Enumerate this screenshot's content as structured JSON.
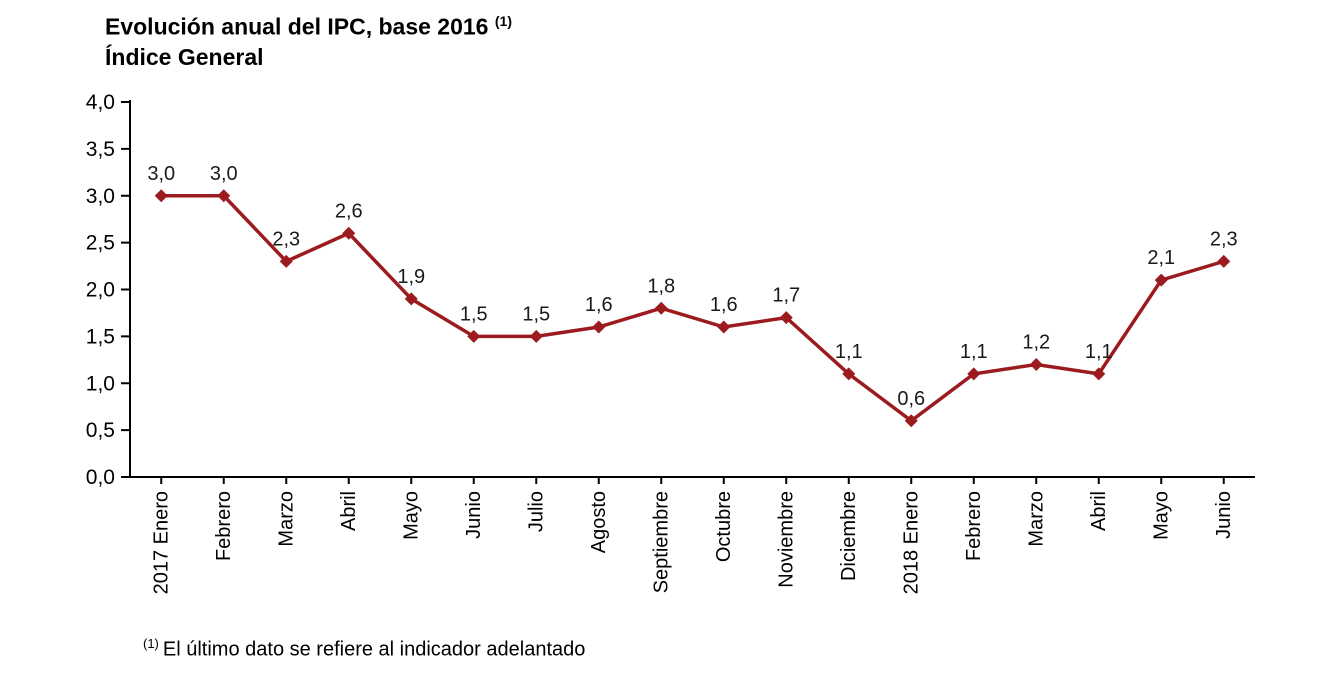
{
  "title": {
    "line1": "Evolución anual del IPC, base 2016",
    "superscript": "(1)",
    "line2": "Índice General"
  },
  "footnote": {
    "marker": "(1)",
    "text": "El último dato se refiere al indicador adelantado"
  },
  "chart_data": {
    "type": "line",
    "title": "Evolución anual del IPC, base 2016 (1) — Índice General",
    "categories": [
      "2017 Enero",
      "Febrero",
      "Marzo",
      "Abril",
      "Mayo",
      "Junio",
      "Julio",
      "Agosto",
      "Septiembre",
      "Octubre",
      "Noviembre",
      "Diciembre",
      "2018 Enero",
      "Febrero",
      "Marzo",
      "Abril",
      "Mayo",
      "Junio"
    ],
    "values": [
      3.0,
      3.0,
      2.3,
      2.6,
      1.9,
      1.5,
      1.5,
      1.6,
      1.8,
      1.6,
      1.7,
      1.1,
      0.6,
      1.1,
      1.2,
      1.1,
      2.1,
      2.3
    ],
    "point_labels": [
      "3,0",
      "3,0",
      "2,3",
      "2,6",
      "1,9",
      "1,5",
      "1,5",
      "1,6",
      "1,8",
      "1,6",
      "1,7",
      "1,1",
      "0,6",
      "1,1",
      "1,2",
      "1,1",
      "2,1",
      "2,3"
    ],
    "xlabel": "",
    "ylabel": "",
    "ylim": [
      0,
      4
    ],
    "ytick_step": 0.5,
    "ytick_labels": [
      "0,0",
      "0,5",
      "1,0",
      "1,5",
      "2,0",
      "2,5",
      "3,0",
      "3,5",
      "4,0"
    ],
    "grid": false,
    "legend": "none",
    "line_color": "#9C1B1E",
    "marker": "diamond",
    "axis_color": "#000000",
    "label_color": "#1a1a1a"
  }
}
